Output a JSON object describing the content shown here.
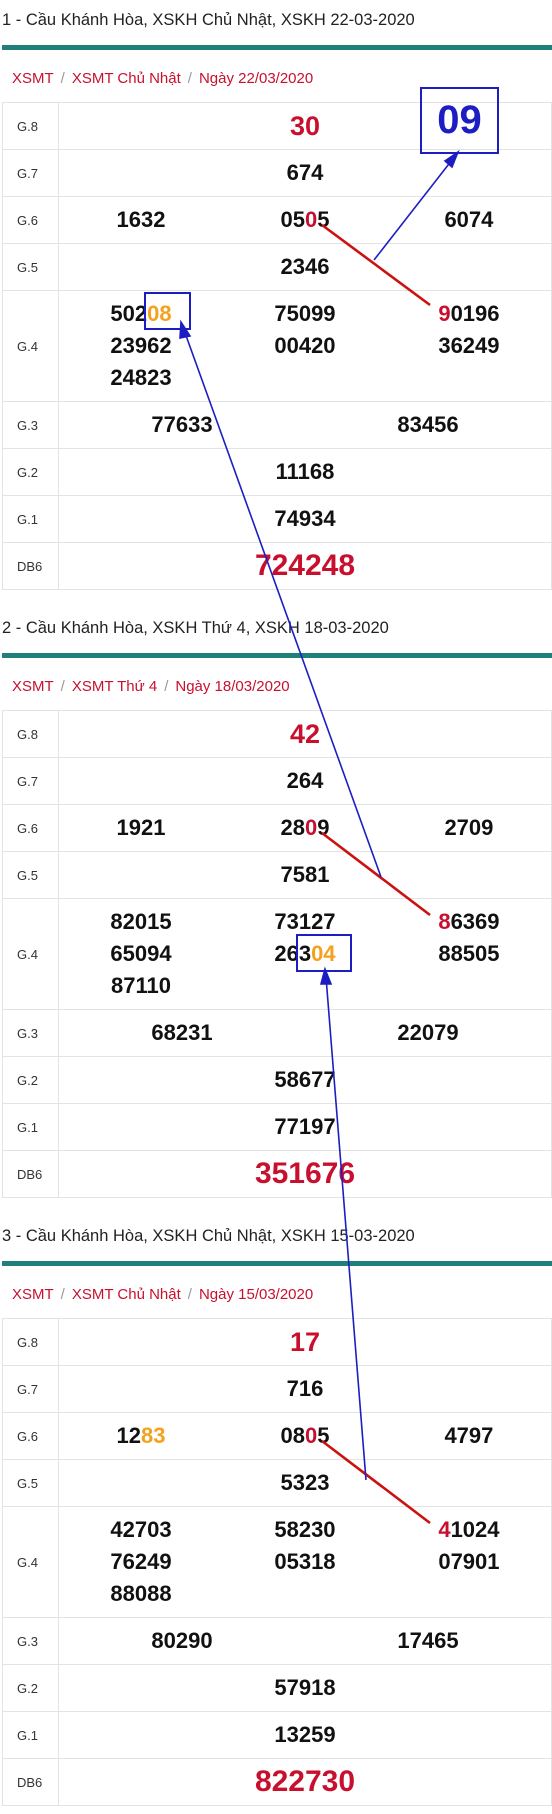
{
  "sections": [
    {
      "title": "1 - Cầu Khánh Hòa, XSKH Chủ Nhật, XSKH 22-03-2020",
      "breadcrumb": [
        "XSMT",
        "XSMT Chủ Nhật",
        "Ngày 22/03/2020"
      ],
      "rows": {
        "g8": {
          "label": "G.8",
          "value": "30"
        },
        "g7": {
          "label": "G.7",
          "value": "674"
        },
        "g6": {
          "label": "G.6",
          "values": [
            "1632",
            "0505",
            "6074"
          ]
        },
        "g5": {
          "label": "G.5",
          "value": "2346"
        },
        "g4": {
          "label": "G.4",
          "col1": [
            "50208",
            "23962",
            "24823"
          ],
          "col2": [
            "75099",
            "00420"
          ],
          "col3": [
            "90196",
            "36249"
          ]
        },
        "g3": {
          "label": "G.3",
          "values": [
            "77633",
            "83456"
          ]
        },
        "g2": {
          "label": "G.2",
          "value": "11168"
        },
        "g1": {
          "label": "G.1",
          "value": "74934"
        },
        "db": {
          "label": "DB6",
          "value": "724248"
        }
      }
    },
    {
      "title": "2 - Cầu Khánh Hòa, XSKH Thứ 4, XSKH 18-03-2020",
      "breadcrumb": [
        "XSMT",
        "XSMT Thứ 4",
        "Ngày 18/03/2020"
      ],
      "rows": {
        "g8": {
          "label": "G.8",
          "value": "42"
        },
        "g7": {
          "label": "G.7",
          "value": "264"
        },
        "g6": {
          "label": "G.6",
          "values": [
            "1921",
            "2809",
            "2709"
          ]
        },
        "g5": {
          "label": "G.5",
          "value": "7581"
        },
        "g4": {
          "label": "G.4",
          "col1": [
            "82015",
            "65094",
            "87110"
          ],
          "col2": [
            "73127",
            "26304"
          ],
          "col3": [
            "86369",
            "88505"
          ]
        },
        "g3": {
          "label": "G.3",
          "values": [
            "68231",
            "22079"
          ]
        },
        "g2": {
          "label": "G.2",
          "value": "58677"
        },
        "g1": {
          "label": "G.1",
          "value": "77197"
        },
        "db": {
          "label": "DB6",
          "value": "351676"
        }
      }
    },
    {
      "title": "3 - Cầu Khánh Hòa, XSKH Chủ Nhật, XSKH 15-03-2020",
      "breadcrumb": [
        "XSMT",
        "XSMT Chủ Nhật",
        "Ngày 15/03/2020"
      ],
      "rows": {
        "g8": {
          "label": "G.8",
          "value": "17"
        },
        "g7": {
          "label": "G.7",
          "value": "716"
        },
        "g6": {
          "label": "G.6",
          "values": [
            "1283",
            "0805",
            "4797"
          ]
        },
        "g5": {
          "label": "G.5",
          "value": "5323"
        },
        "g4": {
          "label": "G.4",
          "col1": [
            "42703",
            "76249",
            "88088"
          ],
          "col2": [
            "58230",
            "05318"
          ],
          "col3": [
            "41024",
            "07901"
          ]
        },
        "g3": {
          "label": "G.3",
          "values": [
            "80290",
            "17465"
          ]
        },
        "g2": {
          "label": "G.2",
          "value": "57918"
        },
        "g1": {
          "label": "G.1",
          "value": "13259"
        },
        "db": {
          "label": "DB6",
          "value": "822730"
        }
      }
    }
  ],
  "prediction": "09",
  "colors": {
    "accent_red": "#c8102e",
    "highlight_orange": "#f4a11d",
    "arrow_blue": "#1d1ec2",
    "line_red": "#cc1111",
    "section_bar": "#1f7f7a"
  }
}
